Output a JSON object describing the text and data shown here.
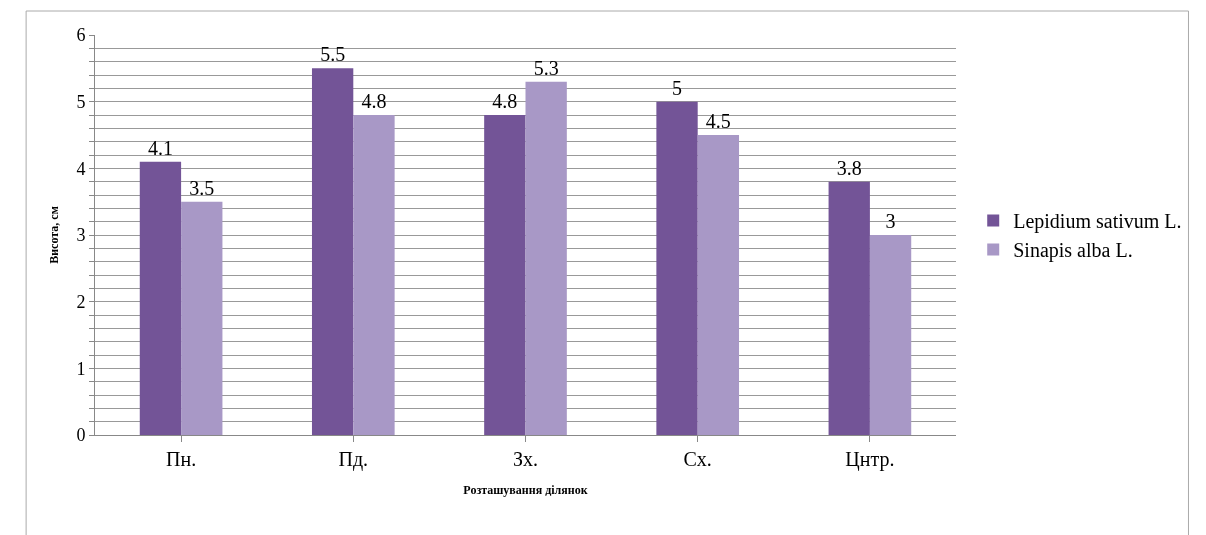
{
  "chart_data": {
    "type": "bar",
    "categories": [
      "Пн.",
      "Пд.",
      "Зх.",
      "Сх.",
      "Цнтр."
    ],
    "series": [
      {
        "name": "Lepidium sativum L.",
        "color": "#735497",
        "values": [
          4.1,
          5.5,
          4.8,
          5,
          3.8
        ]
      },
      {
        "name": "Sinapis alba L.",
        "color": "#a898c6",
        "values": [
          3.5,
          4.8,
          5.3,
          4.5,
          3
        ]
      }
    ],
    "xlabel": "Розташування ділянок",
    "ylabel": "Висота, см",
    "ylim": [
      0,
      6
    ],
    "yticks": [
      0,
      {
        "value": 0.2,
        "label": null
      },
      {
        "value": 0.4,
        "label": null
      },
      {
        "value": 0.6,
        "label": null
      },
      {
        "value": 0.8,
        "label": null
      },
      1,
      {
        "value": 1.2,
        "label": null
      },
      {
        "value": 1.4,
        "label": null
      },
      {
        "value": 1.6,
        "label": null
      },
      {
        "value": 1.8,
        "label": null
      },
      2,
      {
        "value": 2.2,
        "label": null
      },
      {
        "value": 2.4,
        "label": null
      },
      {
        "value": 2.6,
        "label": null
      },
      {
        "value": 2.8,
        "label": null
      },
      3,
      {
        "value": 3.2,
        "label": null
      },
      {
        "value": 3.4,
        "label": null
      },
      {
        "value": 3.6,
        "label": null
      },
      {
        "value": 3.8,
        "label": null
      },
      4,
      {
        "value": 4.2,
        "label": null
      },
      {
        "value": 4.4,
        "label": null
      },
      {
        "value": 4.6,
        "label": null
      },
      {
        "value": 4.8,
        "label": null
      },
      5,
      {
        "value": 5.2,
        "label": null
      },
      {
        "value": 5.4,
        "label": null
      },
      {
        "value": 5.6,
        "label": null
      },
      {
        "value": 5.8,
        "label": null
      },
      6
    ],
    "grid": "y",
    "legend": "right",
    "data_labels": true
  }
}
